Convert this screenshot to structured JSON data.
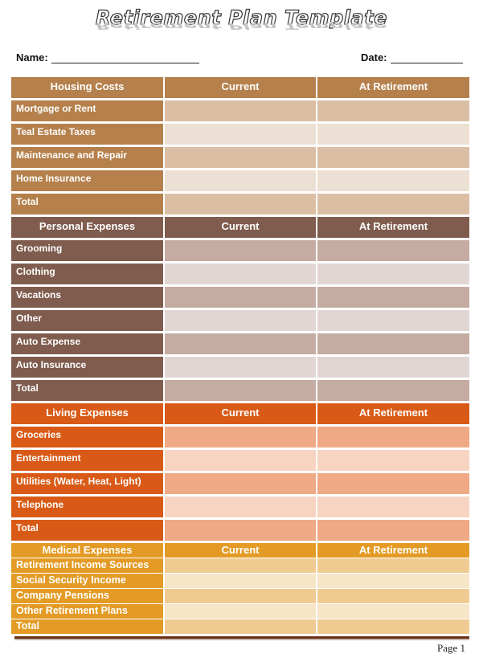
{
  "title": "Retirement Plan Template",
  "name_label": "Name:",
  "date_label": "Date:",
  "sections": [
    {
      "header": "Housing Costs",
      "col2": "Current",
      "col3": "At Retirement",
      "colors": {
        "header": "#b5804b",
        "cell_a": "#dbbfa4",
        "cell_b": "#ecdfd3"
      },
      "rows": [
        "Mortgage or Rent",
        "Teal Estate Taxes",
        "Maintenance and Repair",
        "Home Insurance",
        "Total"
      ]
    },
    {
      "header": "Personal Expenses",
      "col2": "Current",
      "col3": "At Retirement",
      "colors": {
        "header": "#7f5c4e",
        "cell_a": "#c4aca2",
        "cell_b": "#e1d6d3"
      },
      "rows": [
        "Grooming",
        "Clothing",
        "Vacations",
        "Other",
        "Auto Expense",
        "Auto Insurance",
        "Total"
      ]
    },
    {
      "header": "Living Expenses",
      "col2": "Current",
      "col3": "At Retirement",
      "colors": {
        "header": "#d85a16",
        "cell_a": "#f0a985",
        "cell_b": "#f7d4c2"
      },
      "rows": [
        "Groceries",
        "Entertainment",
        "Utilities (Water, Heat, Light)",
        "Telephone",
        "Total"
      ]
    },
    {
      "header": "Medical Expenses",
      "col2": "Current",
      "col3": "At Retirement",
      "colors": {
        "header": "#e39b25",
        "cell_a": "#f0cb91",
        "cell_b": "#f7e5c8"
      },
      "rows": [
        "Retirement Income Sources",
        "Social Security Income",
        "Company Pensions",
        "Other Retirement Plans",
        "Total"
      ]
    }
  ],
  "footer": {
    "page": "Page 1"
  }
}
